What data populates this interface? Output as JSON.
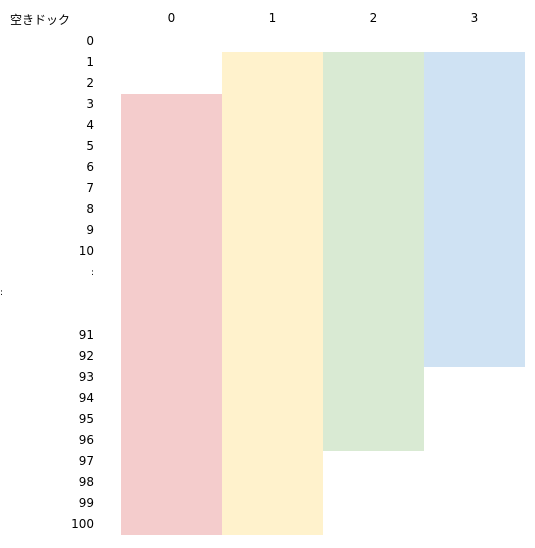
{
  "sheet": {
    "corner_label": "空きドック",
    "columns": [
      "0",
      "1",
      "2",
      "3"
    ],
    "rows_top": [
      "0",
      "1",
      "2",
      "3",
      "4",
      "5",
      "6",
      "7",
      "8",
      "9",
      "10"
    ],
    "ellipsis": ":",
    "stray_mark": ":",
    "rows_bottom": [
      "91",
      "92",
      "93",
      "94",
      "95",
      "96",
      "97",
      "98",
      "99",
      "100"
    ],
    "bars": [
      {
        "column": "0",
        "start_row": "3",
        "end_row": "100",
        "color": "#f4cccc"
      },
      {
        "column": "1",
        "start_row": "1",
        "end_row": "100",
        "color": "#fff2cc"
      },
      {
        "column": "2",
        "start_row": "1",
        "end_row": "96",
        "color": "#d9ead3"
      },
      {
        "column": "3",
        "start_row": "1",
        "end_row": "92",
        "color": "#cfe2f3"
      }
    ]
  }
}
